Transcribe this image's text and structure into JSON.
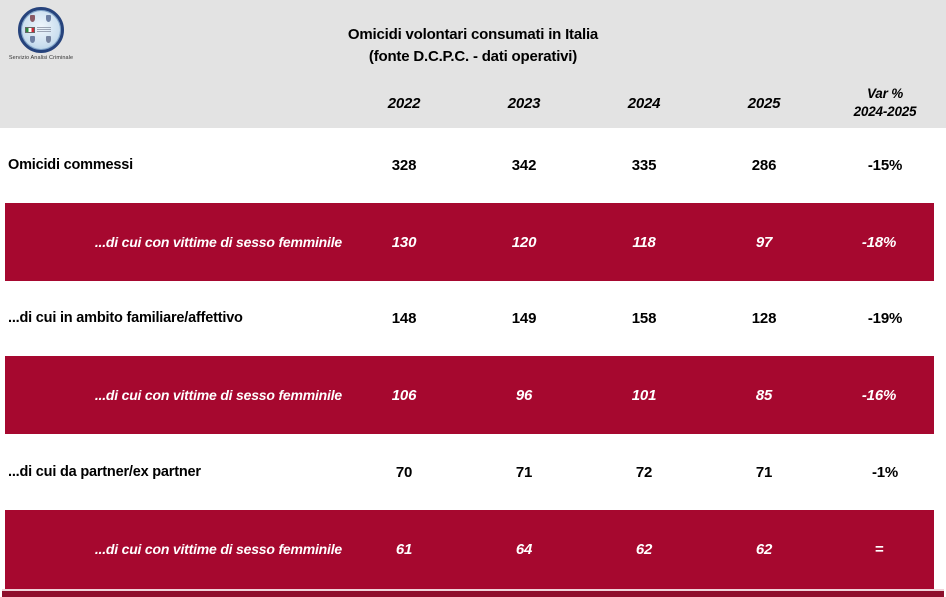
{
  "logo": {
    "caption": "Servizio Analisi Criminale"
  },
  "header": {
    "title_line1": "Omicidi volontari consumati in Italia",
    "title_line2": "(fonte D.C.P.C. - dati operativi)",
    "years": [
      "2022",
      "2023",
      "2024",
      "2025"
    ],
    "var_line1": "Var %",
    "var_line2": "2024-2025"
  },
  "colors": {
    "header_gray": "#E3E3E3",
    "row_red": "#A6082F",
    "bottom_bar": "#8E0F2C",
    "separator_pink": "#EFD3D8",
    "logo_ring": "#26437C"
  },
  "chart_data": {
    "type": "table",
    "title": "Omicidi volontari consumati in Italia",
    "subtitle": "(fonte D.C.P.C. - dati operativi)",
    "columns": [
      "2022",
      "2023",
      "2024",
      "2025",
      "Var % 2024-2025"
    ],
    "rows": [
      {
        "label": "Omicidi commessi",
        "values": [
          328,
          342,
          335,
          286
        ],
        "var_pct": "-15%",
        "highlight": false
      },
      {
        "label": "...di cui con vittime di sesso femminile",
        "values": [
          130,
          120,
          118,
          97
        ],
        "var_pct": "-18%",
        "highlight": true
      },
      {
        "label": "...di cui in ambito familiare/affettivo",
        "values": [
          148,
          149,
          158,
          128
        ],
        "var_pct": "-19%",
        "highlight": false
      },
      {
        "label": "...di cui con vittime di sesso femminile",
        "values": [
          106,
          96,
          101,
          85
        ],
        "var_pct": "-16%",
        "highlight": true
      },
      {
        "label": "...di cui da partner/ex partner",
        "values": [
          70,
          71,
          72,
          71
        ],
        "var_pct": "-1%",
        "highlight": false
      },
      {
        "label": "...di cui con vittime di sesso femminile",
        "values": [
          61,
          64,
          62,
          62
        ],
        "var_pct": "=",
        "highlight": true
      }
    ]
  }
}
